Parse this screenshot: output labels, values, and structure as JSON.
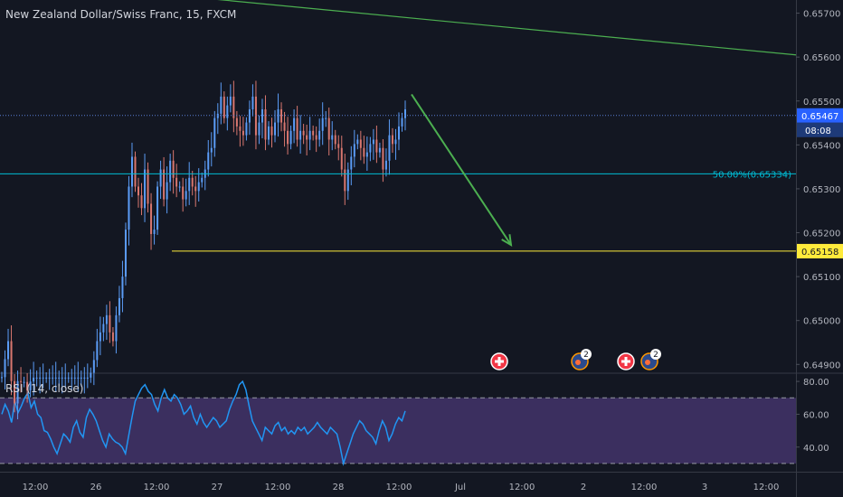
{
  "title": "New Zealand Dollar/Swiss Franc, 15, FXCM",
  "chart_data": {
    "type": "candlestick",
    "symbol": "New Zealand Dollar/Swiss Franc",
    "interval": "15",
    "source": "FXCM",
    "price_axis": {
      "ylim": [
        0.6488,
        0.6573
      ],
      "ticks": [
        "0.65700",
        "0.65600",
        "0.65500",
        "0.65400",
        "0.65300",
        "0.65200",
        "0.65100",
        "0.65000",
        "0.64900"
      ]
    },
    "time_axis": {
      "ticks": [
        "12:00",
        "26",
        "12:00",
        "27",
        "12:00",
        "28",
        "12:00",
        "Jul",
        "12:00",
        "2",
        "12:00",
        "3",
        "12:00"
      ]
    },
    "current_price": {
      "label": "0.65467",
      "value": 0.65467,
      "countdown": "08:08",
      "color": "#2962ff"
    },
    "support_level": {
      "label": "0.65158",
      "value": 0.65158,
      "color": "#ffeb3b"
    },
    "fib_level": {
      "label": "50.00%(0.65334)",
      "value": 0.65334,
      "color": "#00bcd4"
    },
    "trend_line": {
      "color": "#4caf50",
      "from_value": 0.6575,
      "to_value": 0.65605
    },
    "arrow": {
      "color": "#4caf50",
      "from_value": 0.65515,
      "to_value": 0.65172
    },
    "price_path": [
      0.64871,
      0.64912,
      0.64953,
      0.64862,
      0.64811,
      0.64862,
      0.6486,
      0.6486,
      0.64841,
      0.64861,
      0.6487,
      0.6487,
      0.6487,
      0.6487,
      0.6487,
      0.6487,
      0.6487,
      0.6487,
      0.6487,
      0.6487,
      0.6487,
      0.6487,
      0.6487,
      0.6487,
      0.6487,
      0.6487,
      0.6487,
      0.6487,
      0.64881,
      0.6491,
      0.64953,
      0.64973,
      0.64992,
      0.65012,
      0.64973,
      0.64953,
      0.65012,
      0.65051,
      0.651,
      0.65207,
      0.65305,
      0.65373,
      0.65305,
      0.65285,
      0.65256,
      0.65344,
      0.65266,
      0.65197,
      0.65207,
      0.65305,
      0.65344,
      0.65276,
      0.65315,
      0.65364,
      0.65325,
      0.65305,
      0.65305,
      0.65276,
      0.65295,
      0.65325,
      0.65305,
      0.65295,
      0.65315,
      0.65325,
      0.65344,
      0.65383,
      0.65393,
      0.65461,
      0.65471,
      0.6551,
      0.65461,
      0.6549,
      0.6551,
      0.65461,
      0.65442,
      0.65432,
      0.65422,
      0.65451,
      0.65481,
      0.6551,
      0.65422,
      0.65451,
      0.65481,
      0.65412,
      0.65442,
      0.65422,
      0.65451,
      0.65481,
      0.65451,
      0.65432,
      0.65402,
      0.65432,
      0.65461,
      0.65412,
      0.65432,
      0.65422,
      0.65412,
      0.65432,
      0.65422,
      0.65412,
      0.65432,
      0.65461,
      0.65461,
      0.65412,
      0.65422,
      0.65402,
      0.65393,
      0.65344,
      0.65295,
      0.65344,
      0.65373,
      0.65402,
      0.65412,
      0.65393,
      0.65373,
      0.65383,
      0.65402,
      0.65412,
      0.65383,
      0.65393,
      0.65344,
      0.65364,
      0.65422,
      0.65402,
      0.65412,
      0.65442,
      0.65461,
      0.65481
    ],
    "rsi": {
      "label": "RSI (14, close)",
      "ylim": [
        25,
        85
      ],
      "ticks": [
        "80.00",
        "60.00",
        "40.00"
      ],
      "upper_band": 70,
      "lower_band": 30,
      "color": "#2196f3",
      "fill_color": "#7e57c2",
      "values": [
        60,
        66,
        62,
        55,
        68,
        61,
        65,
        70,
        73,
        64,
        68,
        60,
        58,
        50,
        49,
        45,
        40,
        36,
        42,
        48,
        46,
        43,
        52,
        56,
        49,
        46,
        58,
        63,
        60,
        56,
        50,
        44,
        40,
        48,
        45,
        43,
        42,
        40,
        36,
        47,
        58,
        68,
        72,
        76,
        78,
        74,
        72,
        66,
        62,
        70,
        75,
        70,
        68,
        72,
        70,
        66,
        60,
        62,
        65,
        58,
        54,
        60,
        55,
        52,
        55,
        58,
        56,
        52,
        54,
        56,
        63,
        68,
        72,
        78,
        80,
        75,
        65,
        56,
        52,
        48,
        44,
        52,
        50,
        48,
        53,
        55,
        50,
        52,
        48,
        50,
        48,
        52,
        50,
        52,
        48,
        50,
        52,
        55,
        52,
        50,
        48,
        52,
        50,
        48,
        40,
        30,
        36,
        42,
        48,
        52,
        56,
        54,
        50,
        48,
        46,
        42,
        50,
        56,
        52,
        44,
        48,
        54,
        58,
        56,
        62
      ]
    },
    "event_markers": [
      {
        "kind": "flag",
        "label": ""
      },
      {
        "kind": "earnings",
        "label": "2"
      },
      {
        "kind": "flag",
        "label": ""
      },
      {
        "kind": "earnings",
        "label": "2"
      }
    ],
    "grid": false
  }
}
